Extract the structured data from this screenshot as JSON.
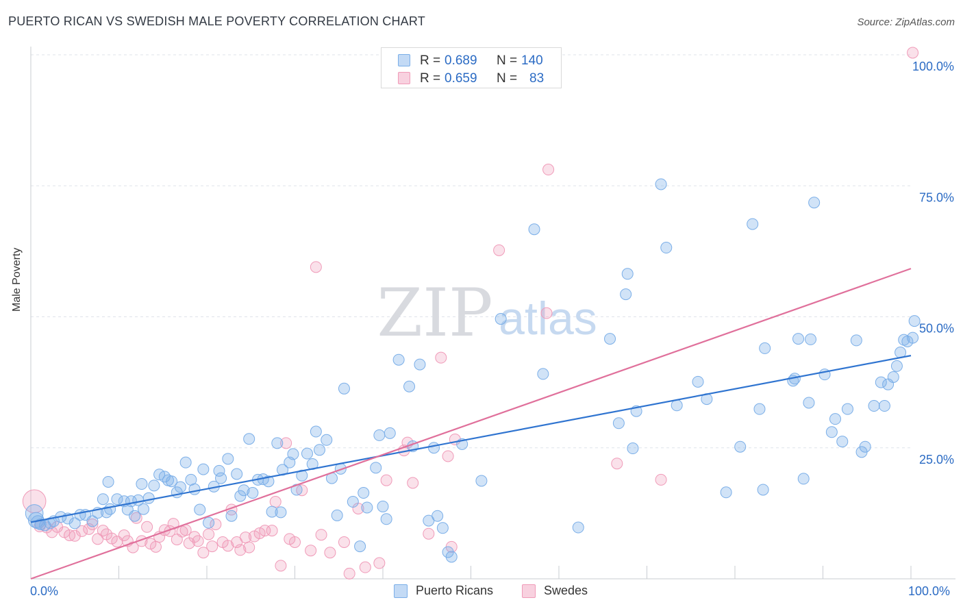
{
  "title": "PUERTO RICAN VS SWEDISH MALE POVERTY CORRELATION CHART",
  "source": "Source: ZipAtlas.com",
  "watermark": {
    "zip": "ZIP",
    "atlas": "atlas"
  },
  "colors": {
    "blue": "#7aaee8",
    "blue_fill": "rgba(122,174,232,0.35)",
    "blue_line": "#2f74d0",
    "pink": "#f09ab8",
    "pink_fill": "rgba(240,154,184,0.30)",
    "pink_line": "#e0709b",
    "axis_text": "#2b6bc4",
    "grid": "#dfe3ea"
  },
  "legend": {
    "rows": [
      {
        "r_label": "R =",
        "r_value": "0.689",
        "n_label": "N =",
        "n_value": "140"
      },
      {
        "r_label": "R =",
        "r_value": "0.659",
        "n_label": "N =",
        "n_value": "83"
      }
    ]
  },
  "bottom_legend": {
    "series1": "Puerto Ricans",
    "series2": "Swedes"
  },
  "chart_data": {
    "type": "scatter",
    "title": "PUERTO RICAN VS SWEDISH MALE POVERTY CORRELATION CHART",
    "xlabel": "",
    "ylabel": "Male Poverty",
    "xlim": [
      0,
      100
    ],
    "ylim": [
      0,
      100
    ],
    "x_tick_labels": [
      "0.0%",
      "100.0%"
    ],
    "y_tick_labels": [
      "100.0%",
      "75.0%",
      "50.0%",
      "25.0%"
    ],
    "y_ticks": [
      100,
      75,
      50,
      25
    ],
    "grid": "horizontal dashed",
    "legend_position": "top-center",
    "series": [
      {
        "name": "Puerto Ricans",
        "color": "#7aaee8",
        "trend": {
          "x0": 0,
          "y0": 10.8,
          "x1": 100,
          "y1": 42.6
        },
        "points": [
          [
            0.4,
            12.5,
            1.6
          ],
          [
            0.6,
            11.2,
            1.4
          ],
          [
            0.8,
            10.8,
            1.2
          ],
          [
            1.1,
            10.4,
            1
          ],
          [
            1.6,
            10.2,
            1
          ],
          [
            2.2,
            10.6,
            1
          ],
          [
            2.6,
            11.0,
            1
          ],
          [
            3.4,
            11.8,
            1
          ],
          [
            4.2,
            11.5,
            1
          ],
          [
            5.0,
            10.6,
            1
          ],
          [
            5.6,
            12.2,
            1
          ],
          [
            6.2,
            12.2,
            1
          ],
          [
            7.0,
            11.0,
            1
          ],
          [
            7.6,
            12.6,
            1
          ],
          [
            8.2,
            15.2,
            1
          ],
          [
            8.6,
            12.7,
            1
          ],
          [
            9.0,
            13.3,
            1
          ],
          [
            8.8,
            18.5,
            1
          ],
          [
            9.8,
            15.2,
            1
          ],
          [
            10.6,
            14.8,
            1
          ],
          [
            11.0,
            13.2,
            1
          ],
          [
            11.4,
            14.8,
            1
          ],
          [
            11.8,
            12.0,
            1
          ],
          [
            12.2,
            15.0,
            1
          ],
          [
            12.6,
            18.1,
            1
          ],
          [
            12.8,
            13.3,
            1
          ],
          [
            13.4,
            15.4,
            1
          ],
          [
            14.0,
            17.8,
            1
          ],
          [
            14.6,
            19.9,
            1
          ],
          [
            15.2,
            19.5,
            1
          ],
          [
            15.6,
            18.8,
            1
          ],
          [
            16.0,
            18.6,
            1
          ],
          [
            16.6,
            16.5,
            1
          ],
          [
            17.0,
            17.5,
            1
          ],
          [
            17.6,
            22.2,
            1
          ],
          [
            18.2,
            18.9,
            1
          ],
          [
            18.6,
            17.1,
            1
          ],
          [
            19.2,
            13.2,
            1
          ],
          [
            19.6,
            20.9,
            1
          ],
          [
            20.2,
            10.7,
            1
          ],
          [
            20.8,
            17.6,
            1
          ],
          [
            21.4,
            20.6,
            1
          ],
          [
            21.6,
            19.2,
            1
          ],
          [
            22.4,
            22.9,
            1
          ],
          [
            22.8,
            12.0,
            1
          ],
          [
            23.4,
            20.0,
            1
          ],
          [
            23.8,
            15.8,
            1
          ],
          [
            24.2,
            16.9,
            1
          ],
          [
            24.8,
            26.7,
            1
          ],
          [
            25.2,
            16.4,
            1
          ],
          [
            25.8,
            18.9,
            1
          ],
          [
            26.4,
            19.0,
            1
          ],
          [
            27.0,
            18.6,
            1
          ],
          [
            27.4,
            12.8,
            1
          ],
          [
            28.0,
            25.9,
            1
          ],
          [
            28.4,
            12.7,
            1
          ],
          [
            28.6,
            20.8,
            1
          ],
          [
            29.4,
            22.2,
            1
          ],
          [
            29.8,
            23.8,
            1
          ],
          [
            30.2,
            17.0,
            1
          ],
          [
            30.8,
            19.7,
            1
          ],
          [
            31.4,
            23.9,
            1
          ],
          [
            32.0,
            21.9,
            1
          ],
          [
            32.4,
            28.1,
            1
          ],
          [
            32.8,
            24.6,
            1
          ],
          [
            33.6,
            26.5,
            1
          ],
          [
            34.2,
            19.2,
            1
          ],
          [
            34.8,
            12.1,
            1
          ],
          [
            35.2,
            21.0,
            1
          ],
          [
            35.6,
            36.3,
            1
          ],
          [
            36.6,
            14.7,
            1
          ],
          [
            37.4,
            6.2,
            1
          ],
          [
            37.8,
            16.4,
            1
          ],
          [
            38.2,
            13.6,
            1
          ],
          [
            39.2,
            21.2,
            1
          ],
          [
            39.6,
            27.4,
            1
          ],
          [
            40.0,
            13.8,
            1
          ],
          [
            40.4,
            11.4,
            1
          ],
          [
            40.8,
            27.8,
            1
          ],
          [
            41.8,
            41.8,
            1
          ],
          [
            43.0,
            36.7,
            1
          ],
          [
            43.4,
            25.3,
            1
          ],
          [
            44.2,
            40.9,
            1
          ],
          [
            45.2,
            11.1,
            1
          ],
          [
            45.8,
            25.0,
            1
          ],
          [
            46.2,
            12.0,
            1
          ],
          [
            46.8,
            9.7,
            1
          ],
          [
            47.4,
            5.1,
            1
          ],
          [
            47.8,
            4.2,
            1
          ],
          [
            49.0,
            25.7,
            1
          ],
          [
            51.2,
            18.7,
            1
          ],
          [
            53.4,
            49.6,
            1
          ],
          [
            57.2,
            66.7,
            1
          ],
          [
            58.2,
            39.1,
            1
          ],
          [
            62.2,
            9.8,
            1
          ],
          [
            65.8,
            45.8,
            1
          ],
          [
            66.8,
            29.7,
            1
          ],
          [
            67.6,
            54.3,
            1
          ],
          [
            67.8,
            58.2,
            1
          ],
          [
            68.8,
            32.0,
            1
          ],
          [
            68.4,
            24.9,
            1
          ],
          [
            71.6,
            75.3,
            1
          ],
          [
            72.2,
            63.2,
            1
          ],
          [
            73.4,
            33.1,
            1
          ],
          [
            75.8,
            37.6,
            1
          ],
          [
            76.8,
            34.3,
            1
          ],
          [
            79.0,
            16.5,
            1
          ],
          [
            80.6,
            25.2,
            1
          ],
          [
            82.0,
            67.7,
            1
          ],
          [
            82.8,
            32.4,
            1
          ],
          [
            83.4,
            44.0,
            1
          ],
          [
            83.2,
            17.0,
            1
          ],
          [
            86.8,
            38.2,
            1
          ],
          [
            86.6,
            37.8,
            1
          ],
          [
            87.2,
            45.8,
            1
          ],
          [
            87.8,
            19.1,
            1
          ],
          [
            88.4,
            33.6,
            1
          ],
          [
            88.6,
            45.7,
            1
          ],
          [
            89.0,
            71.8,
            1
          ],
          [
            90.2,
            39.0,
            1
          ],
          [
            91.0,
            28.0,
            1
          ],
          [
            91.4,
            30.5,
            1
          ],
          [
            92.2,
            26.2,
            1
          ],
          [
            92.8,
            32.4,
            1
          ],
          [
            93.8,
            45.5,
            1
          ],
          [
            94.4,
            24.2,
            1
          ],
          [
            94.8,
            25.2,
            1
          ],
          [
            95.8,
            33.0,
            1
          ],
          [
            96.6,
            37.5,
            1
          ],
          [
            97.0,
            33.0,
            1
          ],
          [
            97.4,
            37.1,
            1
          ],
          [
            98.0,
            38.5,
            1
          ],
          [
            98.4,
            40.6,
            1
          ],
          [
            98.8,
            43.2,
            1
          ],
          [
            99.2,
            45.6,
            1
          ],
          [
            99.6,
            45.3,
            1
          ],
          [
            100.2,
            46.0,
            1
          ],
          [
            100.4,
            49.2,
            1
          ]
        ]
      },
      {
        "name": "Swedes",
        "color": "#f09ab8",
        "trend": {
          "x0": 0,
          "y0": 0.0,
          "x1": 100,
          "y1": 59.2
        },
        "points": [
          [
            0.4,
            14.8,
            2.1
          ],
          [
            1.0,
            10.0,
            1
          ],
          [
            1.8,
            9.8,
            1
          ],
          [
            2.4,
            8.9,
            1
          ],
          [
            3.0,
            9.9,
            1
          ],
          [
            3.8,
            8.9,
            1
          ],
          [
            4.4,
            8.3,
            1
          ],
          [
            5.0,
            8.2,
            1
          ],
          [
            5.8,
            9.1,
            1
          ],
          [
            6.6,
            9.5,
            1
          ],
          [
            7.0,
            10.4,
            1
          ],
          [
            7.6,
            7.6,
            1
          ],
          [
            8.2,
            9.2,
            1
          ],
          [
            8.6,
            8.5,
            1
          ],
          [
            9.2,
            7.7,
            1
          ],
          [
            9.8,
            7.1,
            1
          ],
          [
            10.6,
            8.3,
            1
          ],
          [
            11.0,
            7.2,
            1
          ],
          [
            11.6,
            6.0,
            1
          ],
          [
            12.0,
            11.6,
            1
          ],
          [
            12.6,
            7.2,
            1
          ],
          [
            13.2,
            9.9,
            1
          ],
          [
            13.6,
            6.7,
            1
          ],
          [
            14.2,
            6.1,
            1
          ],
          [
            14.6,
            8.0,
            1
          ],
          [
            15.2,
            9.3,
            1
          ],
          [
            15.8,
            9.1,
            1
          ],
          [
            16.2,
            10.5,
            1
          ],
          [
            16.6,
            7.5,
            1
          ],
          [
            17.2,
            9.0,
            1
          ],
          [
            17.6,
            9.3,
            1
          ],
          [
            18.0,
            6.8,
            1
          ],
          [
            18.6,
            8.0,
            1
          ],
          [
            19.0,
            7.2,
            1
          ],
          [
            19.6,
            5.0,
            1
          ],
          [
            20.2,
            8.5,
            1
          ],
          [
            20.6,
            6.2,
            1
          ],
          [
            21.0,
            10.4,
            1
          ],
          [
            21.8,
            7.0,
            1
          ],
          [
            22.4,
            6.3,
            1
          ],
          [
            22.8,
            13.2,
            1
          ],
          [
            23.4,
            7.0,
            1
          ],
          [
            23.8,
            5.5,
            1
          ],
          [
            24.4,
            7.9,
            1
          ],
          [
            24.8,
            6.0,
            1
          ],
          [
            25.4,
            8.1,
            1
          ],
          [
            26.0,
            8.7,
            1
          ],
          [
            26.6,
            9.2,
            1
          ],
          [
            27.4,
            9.2,
            1
          ],
          [
            27.8,
            14.7,
            1
          ],
          [
            28.4,
            2.5,
            1
          ],
          [
            29.0,
            25.9,
            1
          ],
          [
            29.4,
            7.6,
            1
          ],
          [
            30.0,
            7.0,
            1
          ],
          [
            30.8,
            16.9,
            1
          ],
          [
            31.8,
            5.4,
            1
          ],
          [
            32.4,
            59.5,
            1
          ],
          [
            33.0,
            8.4,
            1
          ],
          [
            34.0,
            5.0,
            1
          ],
          [
            35.6,
            7.0,
            1
          ],
          [
            36.2,
            1.0,
            1
          ],
          [
            37.2,
            13.4,
            1
          ],
          [
            38.0,
            2.2,
            1
          ],
          [
            39.6,
            3.0,
            1
          ],
          [
            40.4,
            18.8,
            1
          ],
          [
            42.4,
            24.5,
            1
          ],
          [
            42.8,
            26.0,
            1
          ],
          [
            43.4,
            18.3,
            1
          ],
          [
            45.2,
            8.6,
            1
          ],
          [
            46.6,
            42.2,
            1
          ],
          [
            47.4,
            23.4,
            1
          ],
          [
            47.8,
            6.1,
            1
          ],
          [
            48.2,
            26.6,
            1
          ],
          [
            53.2,
            62.7,
            1
          ],
          [
            58.6,
            50.7,
            1
          ],
          [
            58.8,
            78.1,
            1
          ],
          [
            66.6,
            22.0,
            1
          ],
          [
            71.6,
            18.9,
            1
          ],
          [
            100.2,
            100.4,
            1
          ]
        ]
      }
    ]
  }
}
